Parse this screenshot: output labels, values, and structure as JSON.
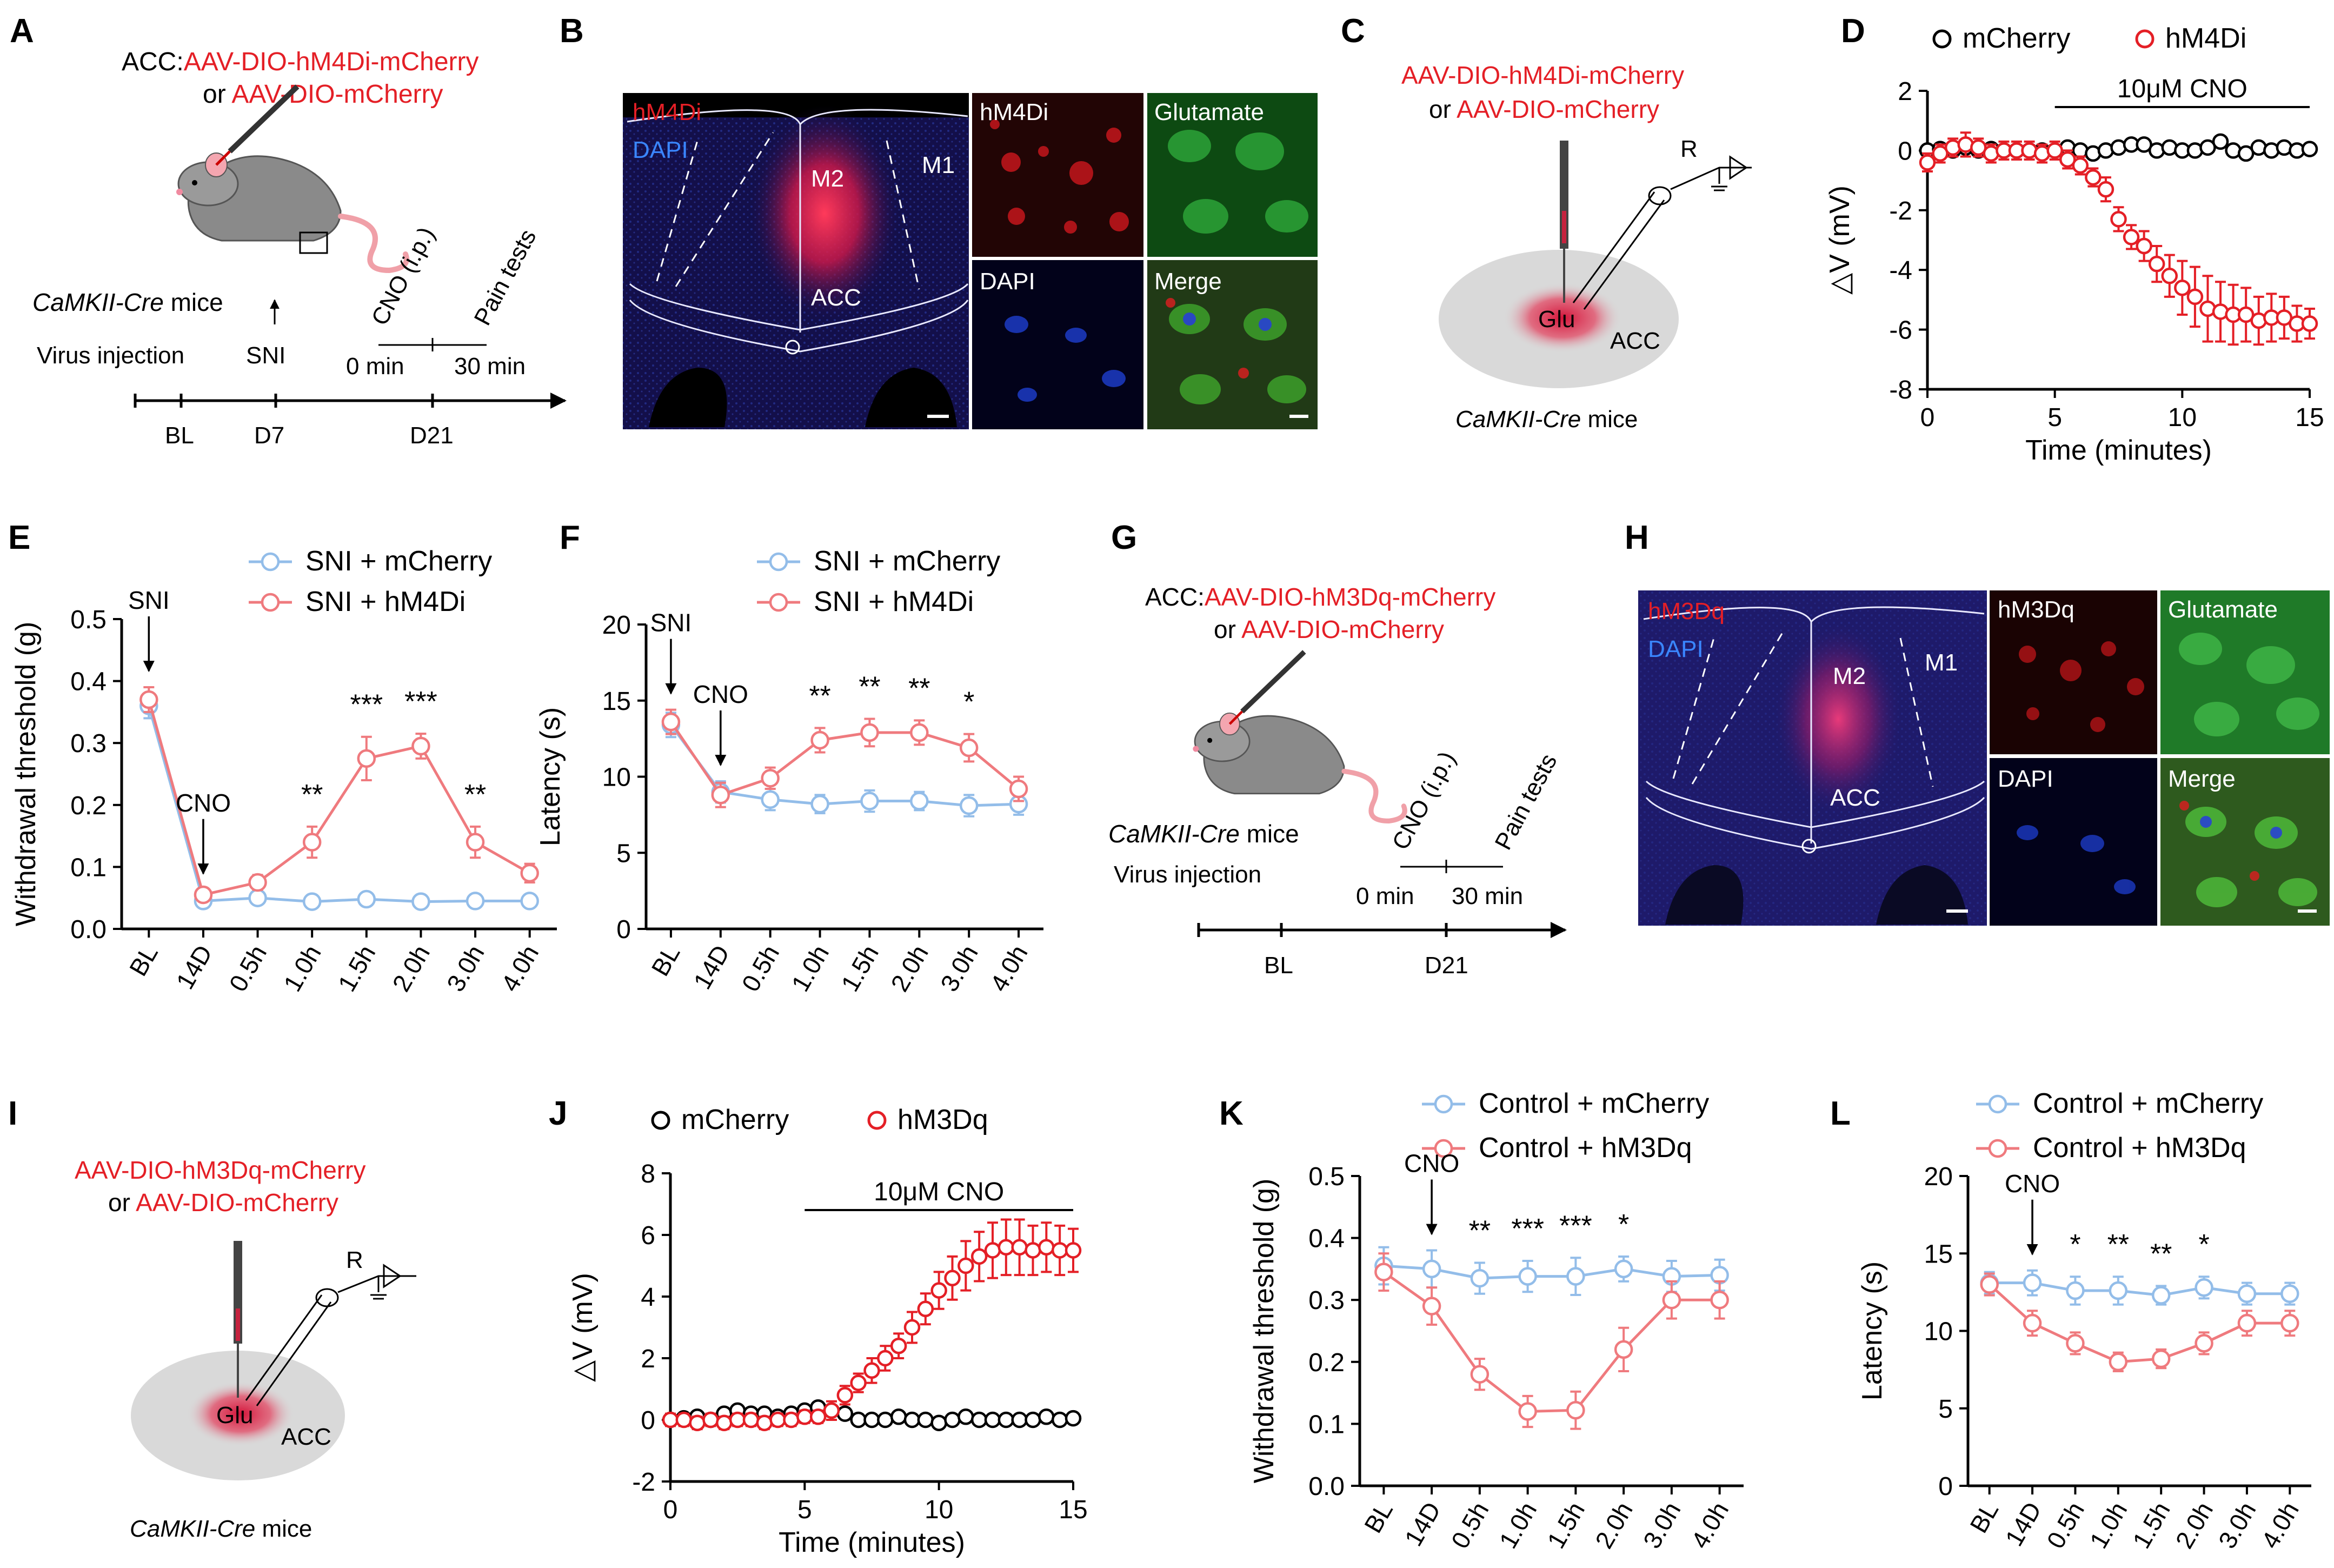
{
  "colors": {
    "red": "#e41f26",
    "pink": "#ef7a7e",
    "blue": "#93bde9",
    "black": "#000000",
    "micro_bg": "#130f4a",
    "green": "#1a8c22"
  },
  "panel_labels": [
    "A",
    "B",
    "C",
    "D",
    "E",
    "F",
    "G",
    "H",
    "I",
    "J",
    "K",
    "L"
  ],
  "panelA": {
    "line1_prefix": "ACC:",
    "line1_virus": "AAV-DIO-hM4Di-mCherry",
    "line2_prefix": "or ",
    "line2_virus": "AAV-DIO-mCherry",
    "mouse_label_italic": "CaMKII-Cre",
    "mouse_label_rest": " mice",
    "virus_injection": "Virus injection",
    "sni": "SNI",
    "cno": "CNO (i.p.)",
    "pain_tests": "Pain tests",
    "t0": "0 min",
    "t30": "30 min",
    "timeline": [
      "BL",
      "D7",
      "D21"
    ]
  },
  "panelB": {
    "hm4di": "hM4Di",
    "dapi": "DAPI",
    "m2": "M2",
    "m1": "M1",
    "acc": "ACC",
    "sub": [
      "hM4Di",
      "Glutamate",
      "DAPI",
      "Merge"
    ]
  },
  "panelC": {
    "line1": "AAV-DIO-hM4Di-mCherry",
    "line2_prefix": "or ",
    "line2_virus": "AAV-DIO-mCherry",
    "r": "R",
    "glu": "Glu",
    "acc": "ACC",
    "mouse_label_italic": "CaMKII-Cre",
    "mouse_label_rest": " mice"
  },
  "panelG": {
    "line1_prefix": "ACC:",
    "line1_virus": "AAV-DIO-hM3Dq-mCherry",
    "line2_prefix": "or ",
    "line2_virus": "AAV-DIO-mCherry",
    "mouse_label_italic": "CaMKII-Cre",
    "mouse_label_rest": " mice",
    "virus_injection": "Virus injection",
    "cno": "CNO (i.p.)",
    "pain_tests": "Pain tests",
    "t0": "0 min",
    "t30": "30 min",
    "timeline": [
      "BL",
      "D21"
    ]
  },
  "panelH": {
    "hm3dq": "hM3Dq",
    "dapi": "DAPI",
    "m2": "M2",
    "m1": "M1",
    "acc": "ACC",
    "sub": [
      "hM3Dq",
      "Glutamate",
      "DAPI",
      "Merge"
    ]
  },
  "panelI": {
    "line1": "AAV-DIO-hM3Dq-mCherry",
    "line2_prefix": "or ",
    "line2_virus": "AAV-DIO-mCherry",
    "r": "R",
    "glu": "Glu",
    "acc": "ACC",
    "mouse_label_italic": "CaMKII-Cre",
    "mouse_label_rest": " mice"
  },
  "chart_data": [
    {
      "id": "D",
      "type": "scatter",
      "xlabel": "Time (minutes)",
      "ylabel": "△V (mV)",
      "xlim": [
        0,
        15
      ],
      "ylim": [
        -8,
        2
      ],
      "xticks": [
        0,
        5,
        10,
        15
      ],
      "yticks": [
        2,
        0,
        -2,
        -4,
        -6,
        -8
      ],
      "annotation": "10μM CNO",
      "annotation_range": [
        5,
        15
      ],
      "series": [
        {
          "name": "mCherry",
          "color": "#000000",
          "x": [
            0,
            0.5,
            1,
            1.5,
            2,
            2.5,
            3,
            3.5,
            4,
            4.5,
            5,
            5.5,
            6,
            6.5,
            7,
            7.5,
            8,
            8.5,
            9,
            9.5,
            10,
            10.5,
            11,
            11.5,
            12,
            12.5,
            13,
            13.5,
            14,
            14.5,
            15
          ],
          "values": [
            0,
            0.05,
            0,
            0.1,
            0,
            0.05,
            0,
            0,
            0,
            0,
            0,
            0.1,
            0,
            -0.1,
            0,
            0.1,
            0.2,
            0.2,
            0,
            0.1,
            0,
            0,
            0.1,
            0.3,
            0,
            -0.1,
            0.1,
            0,
            0.1,
            0,
            0.05
          ],
          "errors": [
            0.1,
            0.1,
            0.1,
            0.1,
            0.1,
            0.1,
            0.1,
            0.1,
            0.1,
            0.1,
            0.1,
            0.1,
            0.1,
            0.1,
            0.1,
            0.1,
            0.1,
            0.1,
            0.1,
            0.1,
            0.1,
            0.1,
            0.1,
            0.1,
            0.1,
            0.1,
            0.1,
            0.1,
            0.1,
            0.1,
            0.1
          ]
        },
        {
          "name": "hM4Di",
          "color": "#e41f26",
          "x": [
            0,
            0.5,
            1,
            1.5,
            2,
            2.5,
            3,
            3.5,
            4,
            4.5,
            5,
            5.5,
            6,
            6.5,
            7,
            7.5,
            8,
            8.5,
            9,
            9.5,
            10,
            10.5,
            11,
            11.5,
            12,
            12.5,
            13,
            13.5,
            14,
            14.5,
            15
          ],
          "values": [
            -0.4,
            -0.1,
            0.1,
            0.2,
            0.1,
            -0.1,
            0,
            0,
            0,
            -0.1,
            0,
            -0.3,
            -0.5,
            -0.9,
            -1.3,
            -2.3,
            -2.9,
            -3.2,
            -3.8,
            -4.2,
            -4.6,
            -4.9,
            -5.3,
            -5.4,
            -5.5,
            -5.5,
            -5.7,
            -5.6,
            -5.6,
            -5.8,
            -5.8
          ],
          "errors": [
            0.3,
            0.3,
            0.3,
            0.4,
            0.3,
            0.3,
            0.3,
            0.3,
            0.3,
            0.3,
            0.3,
            0.3,
            0.3,
            0.3,
            0.4,
            0.4,
            0.4,
            0.5,
            0.6,
            0.7,
            0.9,
            1.0,
            1.1,
            1.0,
            1.0,
            0.9,
            0.8,
            0.8,
            0.7,
            0.6,
            0.5
          ]
        }
      ]
    },
    {
      "id": "E",
      "type": "line",
      "xlabel": "",
      "ylabel": "Withdrawal threshold (g)",
      "categories": [
        "BL",
        "14D",
        "0.5h",
        "1.0h",
        "1.5h",
        "2.0h",
        "3.0h",
        "4.0h"
      ],
      "ylim": [
        0,
        0.5
      ],
      "yticks": [
        0.0,
        0.1,
        0.2,
        0.3,
        0.4,
        0.5
      ],
      "series": [
        {
          "name": "SNI + mCherry",
          "color": "#93bde9",
          "values": [
            0.36,
            0.045,
            0.05,
            0.044,
            0.048,
            0.044,
            0.045,
            0.045
          ],
          "errors": [
            0.02,
            0.005,
            0.005,
            0.005,
            0.005,
            0.004,
            0.004,
            0.004
          ]
        },
        {
          "name": "SNI + hM4Di",
          "color": "#ef7a7e",
          "values": [
            0.37,
            0.055,
            0.075,
            0.14,
            0.275,
            0.295,
            0.14,
            0.09
          ],
          "errors": [
            0.02,
            0.008,
            0.012,
            0.025,
            0.035,
            0.02,
            0.025,
            0.015
          ]
        }
      ],
      "annotations": [
        {
          "text": "SNI",
          "category": "BL",
          "arrow": true
        },
        {
          "text": "CNO",
          "category": "14D",
          "arrow": true
        },
        {
          "text": "**",
          "category": "1.0h"
        },
        {
          "text": "***",
          "category": "1.5h"
        },
        {
          "text": "***",
          "category": "2.0h"
        },
        {
          "text": "**",
          "category": "3.0h"
        }
      ]
    },
    {
      "id": "F",
      "type": "line",
      "xlabel": "",
      "ylabel": "Latency (s)",
      "categories": [
        "BL",
        "14D",
        "0.5h",
        "1.0h",
        "1.5h",
        "2.0h",
        "3.0h",
        "4.0h"
      ],
      "ylim": [
        0,
        20
      ],
      "yticks": [
        0,
        5,
        10,
        15,
        20
      ],
      "series": [
        {
          "name": "SNI + mCherry",
          "color": "#93bde9",
          "values": [
            13.4,
            9.0,
            8.5,
            8.2,
            8.4,
            8.4,
            8.1,
            8.2
          ],
          "errors": [
            0.8,
            0.7,
            0.7,
            0.6,
            0.7,
            0.6,
            0.7,
            0.7
          ]
        },
        {
          "name": "SNI + hM4Di",
          "color": "#ef7a7e",
          "values": [
            13.6,
            8.8,
            9.9,
            12.4,
            12.9,
            12.9,
            11.9,
            9.2
          ],
          "errors": [
            0.8,
            0.8,
            0.7,
            0.8,
            0.9,
            0.8,
            0.9,
            0.8
          ]
        }
      ],
      "annotations": [
        {
          "text": "SNI",
          "category": "BL",
          "arrow": true
        },
        {
          "text": "CNO",
          "category": "14D",
          "arrow": true
        },
        {
          "text": "**",
          "category": "1.0h"
        },
        {
          "text": "**",
          "category": "1.5h"
        },
        {
          "text": "**",
          "category": "2.0h"
        },
        {
          "text": "*",
          "category": "3.0h"
        }
      ]
    },
    {
      "id": "J",
      "type": "scatter",
      "xlabel": "Time (minutes)",
      "ylabel": "△V (mV)",
      "xlim": [
        0,
        15
      ],
      "ylim": [
        -2,
        8
      ],
      "xticks": [
        0,
        5,
        10,
        15
      ],
      "yticks": [
        8,
        6,
        4,
        2,
        0,
        -2
      ],
      "annotation": "10μM CNO",
      "annotation_range": [
        5,
        15
      ],
      "series": [
        {
          "name": "mCherry",
          "color": "#000000",
          "x": [
            0,
            0.5,
            1,
            1.5,
            2,
            2.5,
            3,
            3.5,
            4,
            4.5,
            5,
            5.5,
            6,
            6.5,
            7,
            7.5,
            8,
            8.5,
            9,
            9.5,
            10,
            10.5,
            11,
            11.5,
            12,
            12.5,
            13,
            13.5,
            14,
            14.5,
            15
          ],
          "values": [
            0,
            0.05,
            0.1,
            0,
            0.2,
            0.3,
            0.2,
            0.2,
            0.1,
            0.2,
            0.3,
            0.4,
            0.3,
            0.2,
            0,
            0,
            0,
            0.1,
            0,
            0,
            -0.1,
            0,
            0.1,
            0,
            0,
            0,
            0,
            0,
            0.1,
            0,
            0.05
          ],
          "errors": [
            0.1,
            0.1,
            0.1,
            0.1,
            0.1,
            0.1,
            0.1,
            0.1,
            0.1,
            0.1,
            0.1,
            0.1,
            0.1,
            0.1,
            0.1,
            0.1,
            0.1,
            0.1,
            0.1,
            0.1,
            0.1,
            0.1,
            0.1,
            0.1,
            0.1,
            0.1,
            0.1,
            0.1,
            0.1,
            0.1,
            0.1
          ]
        },
        {
          "name": "hM3Dq",
          "color": "#e41f26",
          "x": [
            0,
            0.5,
            1,
            1.5,
            2,
            2.5,
            3,
            3.5,
            4,
            4.5,
            5,
            5.5,
            6,
            6.5,
            7,
            7.5,
            8,
            8.5,
            9,
            9.5,
            10,
            10.5,
            11,
            11.5,
            12,
            12.5,
            13,
            13.5,
            14,
            14.5,
            15
          ],
          "values": [
            0,
            0,
            -0.1,
            0,
            -0.1,
            0,
            0,
            -0.1,
            0,
            0,
            0.1,
            0.1,
            0.3,
            0.8,
            1.2,
            1.6,
            2.0,
            2.4,
            3.0,
            3.6,
            4.2,
            4.6,
            5.0,
            5.3,
            5.5,
            5.6,
            5.6,
            5.5,
            5.6,
            5.5,
            5.5
          ],
          "errors": [
            0.2,
            0.2,
            0.2,
            0.2,
            0.2,
            0.2,
            0.2,
            0.2,
            0.2,
            0.2,
            0.2,
            0.2,
            0.3,
            0.3,
            0.3,
            0.4,
            0.4,
            0.4,
            0.5,
            0.5,
            0.6,
            0.7,
            0.8,
            0.8,
            0.9,
            0.9,
            0.9,
            0.8,
            0.8,
            0.8,
            0.7
          ]
        }
      ]
    },
    {
      "id": "K",
      "type": "line",
      "xlabel": "",
      "ylabel": "Withdrawal threshold (g)",
      "categories": [
        "BL",
        "14D",
        "0.5h",
        "1.0h",
        "1.5h",
        "2.0h",
        "3.0h",
        "4.0h"
      ],
      "ylim": [
        0,
        0.5
      ],
      "yticks": [
        0.0,
        0.1,
        0.2,
        0.3,
        0.4,
        0.5
      ],
      "series": [
        {
          "name": "Control + mCherry",
          "color": "#93bde9",
          "values": [
            0.355,
            0.35,
            0.335,
            0.338,
            0.338,
            0.35,
            0.338,
            0.34
          ],
          "errors": [
            0.03,
            0.03,
            0.025,
            0.025,
            0.03,
            0.02,
            0.025,
            0.025
          ]
        },
        {
          "name": "Control + hM3Dq",
          "color": "#ef7a7e",
          "values": [
            0.345,
            0.29,
            0.18,
            0.12,
            0.122,
            0.22,
            0.3,
            0.3
          ],
          "errors": [
            0.03,
            0.03,
            0.025,
            0.025,
            0.03,
            0.035,
            0.03,
            0.03
          ]
        }
      ],
      "annotations": [
        {
          "text": "CNO",
          "category": "14D",
          "arrow": true
        },
        {
          "text": "**",
          "category": "0.5h"
        },
        {
          "text": "***",
          "category": "1.0h"
        },
        {
          "text": "***",
          "category": "1.5h"
        },
        {
          "text": "*",
          "category": "2.0h"
        }
      ]
    },
    {
      "id": "L",
      "type": "line",
      "xlabel": "",
      "ylabel": "Latency (s)",
      "categories": [
        "BL",
        "14D",
        "0.5h",
        "1.0h",
        "1.5h",
        "2.0h",
        "3.0h",
        "4.0h"
      ],
      "ylim": [
        0,
        20
      ],
      "yticks": [
        0,
        5,
        10,
        15,
        20
      ],
      "series": [
        {
          "name": "Control + mCherry",
          "color": "#93bde9",
          "values": [
            13.1,
            13.1,
            12.6,
            12.6,
            12.3,
            12.8,
            12.4,
            12.4
          ],
          "errors": [
            0.7,
            0.8,
            0.9,
            0.9,
            0.6,
            0.7,
            0.7,
            0.7
          ]
        },
        {
          "name": "Control + hM3Dq",
          "color": "#ef7a7e",
          "values": [
            13.0,
            10.5,
            9.2,
            8.0,
            8.2,
            9.2,
            10.5,
            10.5
          ],
          "errors": [
            0.7,
            0.8,
            0.7,
            0.6,
            0.6,
            0.7,
            0.8,
            0.8
          ]
        }
      ],
      "annotations": [
        {
          "text": "CNO",
          "category": "14D",
          "arrow": true
        },
        {
          "text": "*",
          "category": "0.5h"
        },
        {
          "text": "**",
          "category": "1.0h"
        },
        {
          "text": "**",
          "category": "1.5h"
        },
        {
          "text": "*",
          "category": "2.0h"
        }
      ]
    }
  ]
}
